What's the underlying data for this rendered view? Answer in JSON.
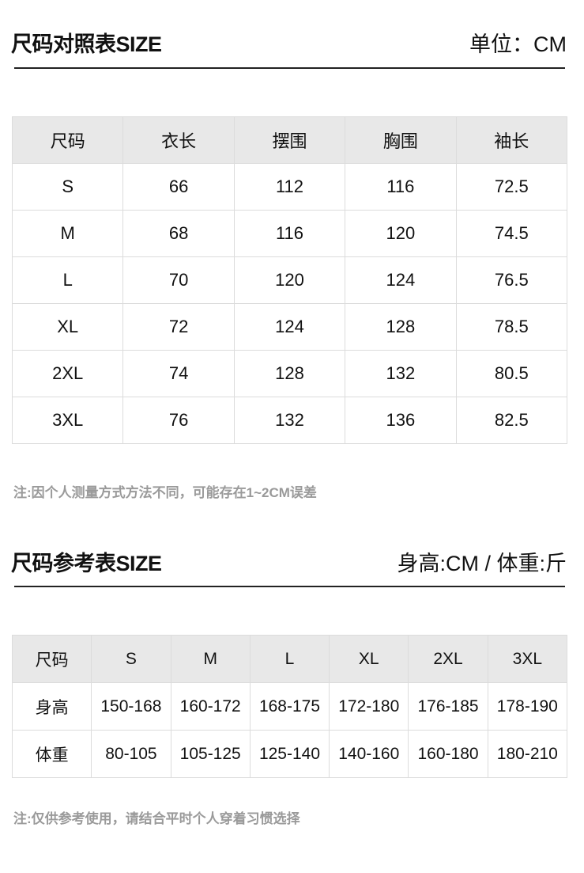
{
  "section1": {
    "title": "尺码对照表SIZE",
    "unit": "单位：CM",
    "headers": [
      "尺码",
      "衣长",
      "摆围",
      "胸围",
      "袖长"
    ],
    "rows": [
      [
        "S",
        "66",
        "112",
        "116",
        "72.5"
      ],
      [
        "M",
        "68",
        "116",
        "120",
        "74.5"
      ],
      [
        "L",
        "70",
        "120",
        "124",
        "76.5"
      ],
      [
        "XL",
        "72",
        "124",
        "128",
        "78.5"
      ],
      [
        "2XL",
        "74",
        "128",
        "132",
        "80.5"
      ],
      [
        "3XL",
        "76",
        "132",
        "136",
        "82.5"
      ]
    ],
    "note": "注:因个人测量方式方法不同，可能存在1~2CM误差"
  },
  "section2": {
    "title": "尺码参考表SIZE",
    "unit": "身高:CM / 体重:斤",
    "headers": [
      "尺码",
      "S",
      "M",
      "L",
      "XL",
      "2XL",
      "3XL"
    ],
    "rows": [
      [
        "身高",
        "150-168",
        "160-172",
        "168-175",
        "172-180",
        "176-185",
        "178-190"
      ],
      [
        "体重",
        "80-105",
        "105-125",
        "125-140",
        "140-160",
        "160-180",
        "180-210"
      ]
    ],
    "note": "注:仅供参考使用，请结合平时个人穿着习惯选择"
  }
}
